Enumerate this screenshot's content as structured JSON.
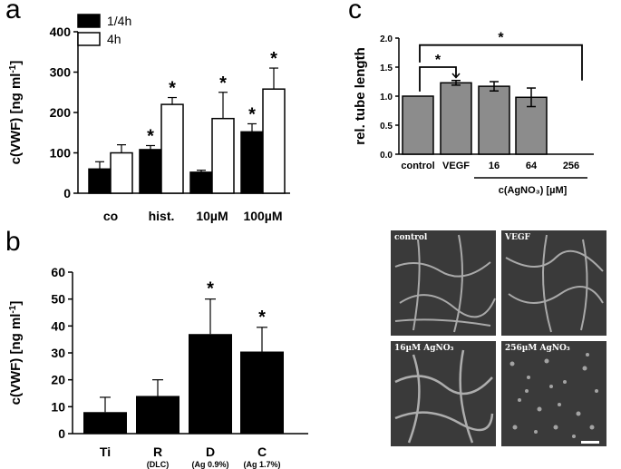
{
  "panel_letters": {
    "a": "a",
    "b": "b",
    "c": "c"
  },
  "colors": {
    "black": "#000000",
    "white": "#ffffff",
    "gray_bar": "#8c8c8c",
    "photo_bg": "#3a3a3a"
  },
  "chart_data": [
    {
      "id": "a",
      "type": "bar",
      "ylabel_main": "c(VWF) [ng ml",
      "ylabel_sup": "-1",
      "ylabel_end": "]",
      "categories": [
        "co",
        "hist.",
        "10µM",
        "100µM"
      ],
      "ylim": [
        0,
        400
      ],
      "yticks": [
        0,
        100,
        200,
        300,
        400
      ],
      "legend_position": "top-left",
      "series": [
        {
          "name": "1/4h",
          "fill": "#000000",
          "values": [
            60,
            108,
            52,
            152
          ],
          "errors": [
            18,
            10,
            5,
            20
          ]
        },
        {
          "name": "4h",
          "fill": "#ffffff",
          "values": [
            100,
            220,
            185,
            258
          ],
          "errors": [
            20,
            17,
            65,
            52
          ]
        }
      ],
      "significance": [
        {
          "series": 0,
          "index": 1,
          "label": "*"
        },
        {
          "series": 0,
          "index": 3,
          "label": "*"
        },
        {
          "series": 1,
          "index": 1,
          "label": "*"
        },
        {
          "series": 1,
          "index": 2,
          "label": "*"
        },
        {
          "series": 1,
          "index": 3,
          "label": "*"
        }
      ]
    },
    {
      "id": "b",
      "type": "bar",
      "ylabel_main": "c(VWF) [ng ml",
      "ylabel_sup": "-1",
      "ylabel_end": "]",
      "categories": [
        "Ti",
        "R",
        "D",
        "C"
      ],
      "sublabels": [
        "",
        "(DLC)",
        "(Ag 0.9%)",
        "(Ag 1.7%)"
      ],
      "ylim": [
        0,
        60
      ],
      "yticks": [
        0,
        10,
        20,
        30,
        40,
        50,
        60
      ],
      "values": [
        8,
        14,
        37,
        30.5
      ],
      "errors": [
        5.5,
        6,
        13,
        9
      ],
      "significance": [
        {
          "index": 2,
          "label": "*"
        },
        {
          "index": 3,
          "label": "*"
        }
      ]
    },
    {
      "id": "c",
      "type": "bar",
      "ylabel": "rel. tube length",
      "categories": [
        "control",
        "VEGF",
        "16",
        "64",
        "256"
      ],
      "ylim": [
        0,
        2.0
      ],
      "yticks": [
        "0.0",
        "0.5",
        "1.0",
        "1.5",
        "2.0"
      ],
      "values": [
        1.0,
        1.23,
        1.17,
        0.98,
        0.0
      ],
      "errors": [
        0,
        0.04,
        0.08,
        0.16,
        0
      ],
      "group_label": "c(AgNO₃) [µM]",
      "brackets": [
        {
          "from": 0,
          "to": 1,
          "label": "*"
        },
        {
          "from": 0,
          "to": 4,
          "label": "*"
        }
      ]
    }
  ],
  "micrographs": [
    {
      "label": "control"
    },
    {
      "label": "VEGF"
    },
    {
      "label": "16µM AgNO₃"
    },
    {
      "label": "256µM AgNO₃"
    }
  ]
}
